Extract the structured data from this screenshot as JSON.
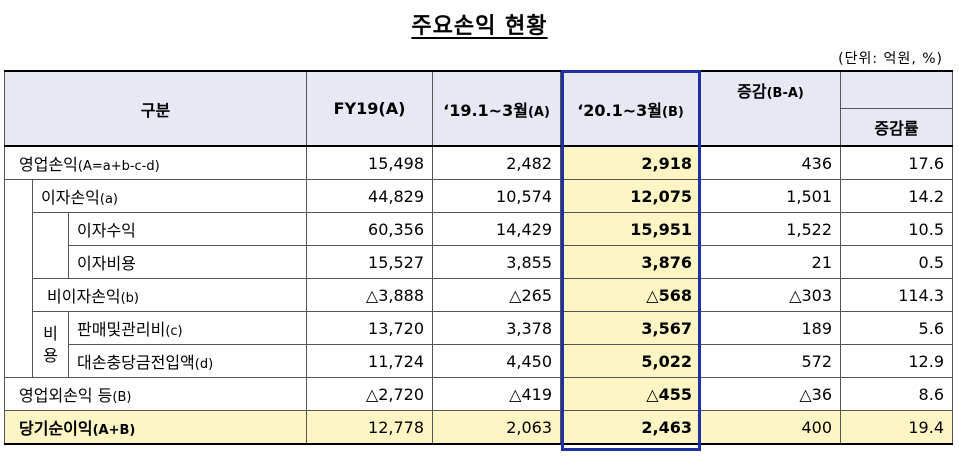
{
  "title": "주요손익 현황",
  "unit": "(단위: 억원, %)",
  "headers": {
    "category": "구분",
    "fy19": "FY19(A)",
    "q19_main": "‘19.1~3월",
    "q19_suffix": "(A)",
    "q20_main": "‘20.1~3월",
    "q20_suffix": "(B)",
    "change_main": "증감",
    "change_suffix": "(B-A)",
    "rate": "증감률"
  },
  "rows": {
    "operating": {
      "label": "영업손익",
      "suffix": "(A=a+b-c-d)",
      "fy19": "15,498",
      "q19": "2,482",
      "q20": "2,918",
      "change": "436",
      "rate": "17.6"
    },
    "interest": {
      "label": "이자손익",
      "suffix": "(a)",
      "fy19": "44,829",
      "q19": "10,574",
      "q20": "12,075",
      "change": "1,501",
      "rate": "14.2"
    },
    "interest_income": {
      "label": "이자수익",
      "fy19": "60,356",
      "q19": "14,429",
      "q20": "15,951",
      "change": "1,522",
      "rate": "10.5"
    },
    "interest_expense": {
      "label": "이자비용",
      "fy19": "15,527",
      "q19": "3,855",
      "q20": "3,876",
      "change": "21",
      "rate": "0.5"
    },
    "non_interest": {
      "label": "비이자손익",
      "suffix": "(b)",
      "fy19": "△3,888",
      "q19": "△265",
      "q20": "△568",
      "change": "△303",
      "rate": "114.3"
    },
    "sga": {
      "label": "판매및관리비",
      "suffix": "(c)",
      "fy19": "13,720",
      "q19": "3,378",
      "q20": "3,567",
      "change": "189",
      "rate": "5.6"
    },
    "provision": {
      "label": "대손충당금전입액",
      "suffix": "(d)",
      "fy19": "11,724",
      "q19": "4,450",
      "q20": "5,022",
      "change": "572",
      "rate": "12.9"
    },
    "non_operating": {
      "label": "영업외손익 등",
      "suffix": "(B)",
      "fy19": "△2,720",
      "q19": "△419",
      "q20": "△455",
      "change": "△36",
      "rate": "8.6"
    },
    "net_income": {
      "label": "당기순이익",
      "suffix": "(A+B)",
      "fy19": "12,778",
      "q19": "2,063",
      "q20": "2,463",
      "change": "400",
      "rate": "19.4"
    }
  },
  "expense_group": {
    "char1": "비",
    "char2": "용"
  },
  "colors": {
    "header_bg": "#e6e8f3",
    "highlight": "#fdf5c4",
    "box_border": "#1f2fa6"
  }
}
